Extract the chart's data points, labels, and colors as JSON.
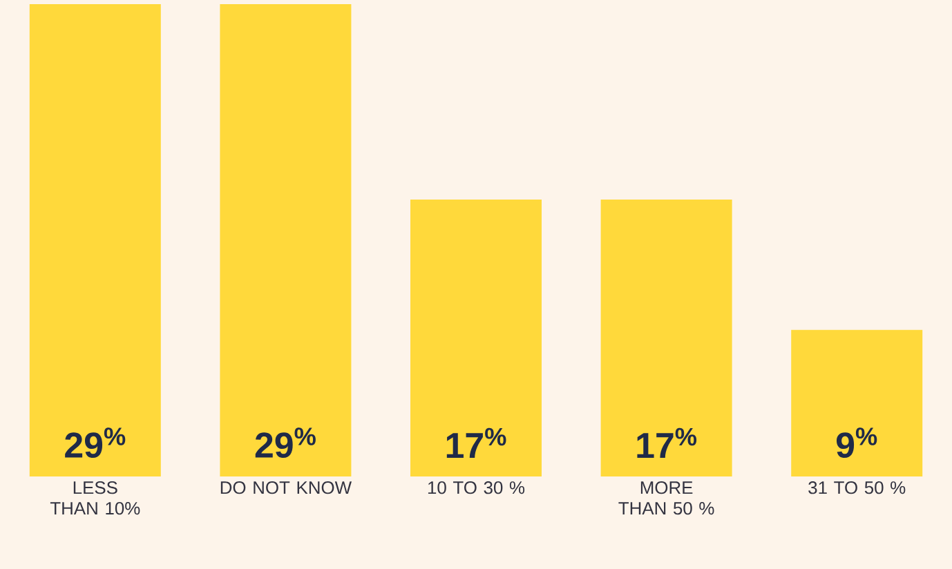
{
  "chart_data": {
    "type": "bar",
    "categories": [
      "LESS THAN 10%",
      "DO NOT KNOW",
      "10 TO 30 %",
      "MORE THAN 50 %",
      "31 TO 50 %"
    ],
    "values": [
      29,
      29,
      17,
      17,
      9
    ],
    "value_labels": [
      "29$^{%}$",
      "29$^{%}$",
      "17$^{%}$",
      "17$^{%}$",
      "9$^{%}$"
    ],
    "color": "#ffd93b"
  }
}
